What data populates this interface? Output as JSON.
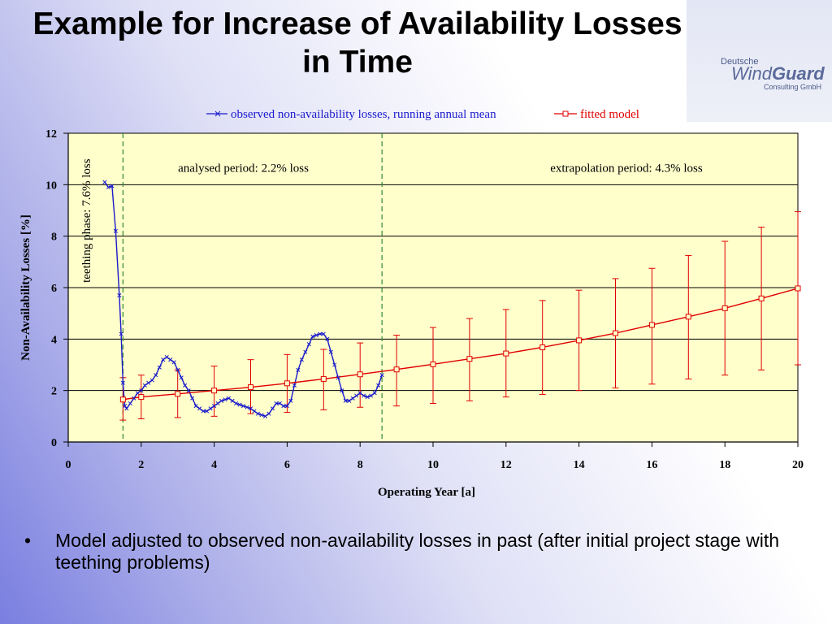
{
  "slide": {
    "title": "Example for Increase of Availability Losses in Time",
    "bullet": "Model adjusted to observed non-availability losses in past (after initial project stage with teething problems)",
    "bullet_symbol": "•"
  },
  "logo": {
    "top": "Deutsche",
    "main_a": "Wind",
    "main_b": "Guard",
    "sub": "Consulting GmbH"
  },
  "chart_data": {
    "type": "line",
    "xlabel": "Operating Year [a]",
    "ylabel": "Non-Availability Losses [%]",
    "xlim": [
      0,
      20
    ],
    "ylim": [
      0,
      12
    ],
    "xticks": [
      0,
      2,
      4,
      6,
      8,
      10,
      12,
      14,
      16,
      18,
      20
    ],
    "yticks": [
      0,
      2,
      4,
      6,
      8,
      10,
      12
    ],
    "grid": "horizontal",
    "legend_position": "top",
    "plot_background": "#ffffcc",
    "colors": {
      "observed": "#1a1acc",
      "model": "#e00000",
      "divider": "#2e8b2e"
    },
    "dividers": [
      1.5,
      8.6
    ],
    "annotations": [
      {
        "text": "teething phase: 7.6% loss",
        "x": 0.6,
        "y": 8.6,
        "rotate": true
      },
      {
        "text": "analysed period: 2.2% loss",
        "x": 4.8,
        "y": 10.5
      },
      {
        "text": "extrapolation period: 4.3% loss",
        "x": 15.3,
        "y": 10.5
      }
    ],
    "series": [
      {
        "name": "observed non-availability losses, running annual mean",
        "marker": "x",
        "x": [
          1.0,
          1.1,
          1.2,
          1.3,
          1.4,
          1.45,
          1.5,
          1.55,
          1.6,
          1.7,
          1.8,
          1.9,
          2.0,
          2.1,
          2.2,
          2.3,
          2.4,
          2.5,
          2.6,
          2.7,
          2.8,
          2.9,
          3.0,
          3.1,
          3.2,
          3.3,
          3.4,
          3.5,
          3.6,
          3.7,
          3.8,
          3.9,
          4.0,
          4.1,
          4.2,
          4.3,
          4.4,
          4.5,
          4.6,
          4.7,
          4.8,
          4.9,
          5.0,
          5.1,
          5.2,
          5.3,
          5.4,
          5.5,
          5.6,
          5.7,
          5.8,
          5.9,
          6.0,
          6.1,
          6.2,
          6.3,
          6.4,
          6.5,
          6.6,
          6.7,
          6.8,
          6.9,
          7.0,
          7.1,
          7.2,
          7.3,
          7.4,
          7.5,
          7.6,
          7.7,
          7.8,
          7.9,
          8.0,
          8.1,
          8.2,
          8.3,
          8.4,
          8.5,
          8.6
        ],
        "y": [
          10.1,
          9.9,
          9.95,
          8.2,
          5.7,
          4.2,
          2.3,
          1.4,
          1.3,
          1.5,
          1.7,
          1.9,
          2.0,
          2.2,
          2.3,
          2.4,
          2.6,
          2.9,
          3.2,
          3.3,
          3.2,
          3.1,
          2.8,
          2.5,
          2.2,
          2.0,
          1.7,
          1.4,
          1.3,
          1.2,
          1.2,
          1.3,
          1.4,
          1.5,
          1.6,
          1.65,
          1.7,
          1.6,
          1.5,
          1.45,
          1.4,
          1.35,
          1.3,
          1.2,
          1.1,
          1.05,
          1.0,
          1.1,
          1.3,
          1.5,
          1.5,
          1.4,
          1.4,
          1.6,
          2.2,
          2.8,
          3.2,
          3.5,
          3.8,
          4.1,
          4.15,
          4.2,
          4.2,
          4.0,
          3.5,
          3.0,
          2.5,
          2.0,
          1.6,
          1.6,
          1.7,
          1.8,
          1.9,
          1.8,
          1.75,
          1.8,
          1.9,
          2.2,
          2.6
        ]
      },
      {
        "name": "fitted model",
        "marker": "square",
        "x": [
          1.5,
          2,
          3,
          4,
          5,
          6,
          7,
          8,
          9,
          10,
          11,
          12,
          13,
          14,
          15,
          16,
          17,
          18,
          19,
          20
        ],
        "y": [
          1.65,
          1.75,
          1.87,
          2.0,
          2.13,
          2.28,
          2.45,
          2.63,
          2.82,
          3.02,
          3.23,
          3.44,
          3.68,
          3.95,
          4.23,
          4.55,
          4.87,
          5.2,
          5.58,
          5.97
        ],
        "err_low": [
          0.85,
          0.9,
          0.95,
          1.0,
          1.1,
          1.15,
          1.25,
          1.35,
          1.4,
          1.5,
          1.6,
          1.75,
          1.85,
          2.0,
          2.1,
          2.25,
          2.45,
          2.6,
          2.8,
          3.0
        ],
        "err_high": [
          2.5,
          2.6,
          2.8,
          2.95,
          3.2,
          3.4,
          3.6,
          3.85,
          4.15,
          4.45,
          4.8,
          5.15,
          5.5,
          5.9,
          6.35,
          6.75,
          7.25,
          7.8,
          8.35,
          8.95
        ]
      }
    ]
  }
}
